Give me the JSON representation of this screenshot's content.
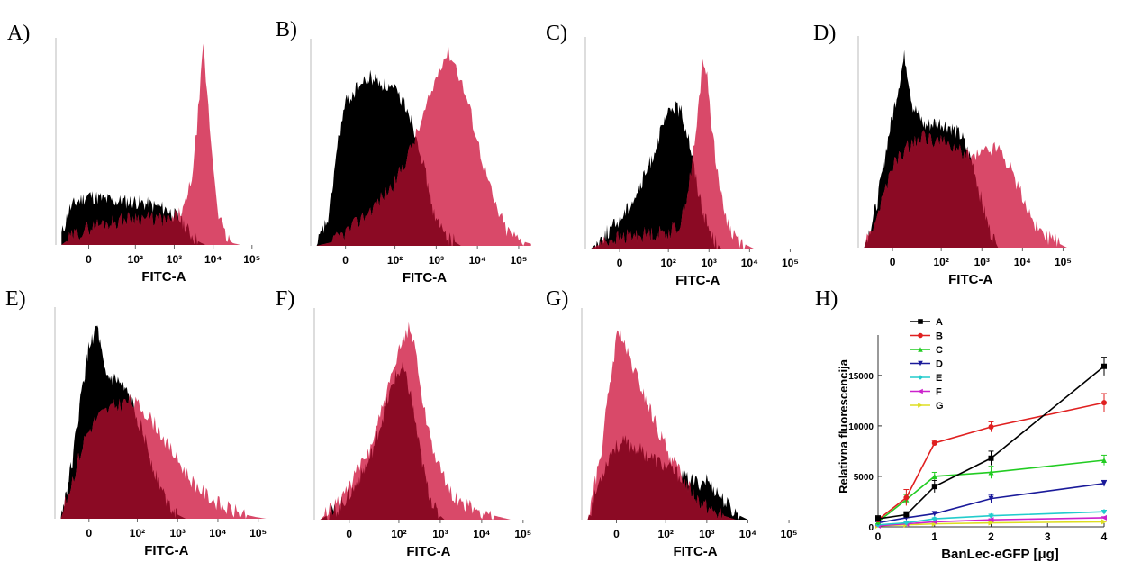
{
  "colors": {
    "control": "#000000",
    "sample": "#d63a5c",
    "overlap": "#8b0a24"
  },
  "chart_data": [
    {
      "panel": "A)",
      "type": "area",
      "xlabel": "FITC-A",
      "xticks": [
        "0",
        "10²",
        "10³",
        "10⁴",
        "10⁵"
      ],
      "control": [
        [
          -0.9,
          0.05
        ],
        [
          -0.7,
          0.18
        ],
        [
          -0.5,
          0.22
        ],
        [
          -0.2,
          0.25
        ],
        [
          0.2,
          0.23
        ],
        [
          0.6,
          0.22
        ],
        [
          1.0,
          0.22
        ],
        [
          1.4,
          0.2
        ],
        [
          1.8,
          0.18
        ],
        [
          2.0,
          0.15
        ],
        [
          2.2,
          0.12
        ],
        [
          2.4,
          0.06
        ],
        [
          2.6,
          0.02
        ],
        [
          2.8,
          0.0
        ]
      ],
      "sample": [
        [
          -0.9,
          0.0
        ],
        [
          -0.5,
          0.06
        ],
        [
          0.0,
          0.1
        ],
        [
          0.5,
          0.12
        ],
        [
          1.0,
          0.14
        ],
        [
          1.5,
          0.13
        ],
        [
          1.9,
          0.12
        ],
        [
          2.1,
          0.15
        ],
        [
          2.3,
          0.2
        ],
        [
          2.5,
          0.4
        ],
        [
          2.65,
          0.75
        ],
        [
          2.75,
          1.0
        ],
        [
          2.85,
          0.75
        ],
        [
          3.0,
          0.4
        ],
        [
          3.15,
          0.15
        ],
        [
          3.3,
          0.05
        ],
        [
          3.5,
          0.01
        ],
        [
          3.7,
          0.0
        ]
      ]
    },
    {
      "panel": "B)",
      "type": "area",
      "xlabel": "FITC-A",
      "xticks": [
        "0",
        "10²",
        "10³",
        "10⁴",
        "10⁵"
      ],
      "control": [
        [
          -0.9,
          0.0
        ],
        [
          -0.6,
          0.15
        ],
        [
          -0.4,
          0.5
        ],
        [
          -0.2,
          0.72
        ],
        [
          0.1,
          0.8
        ],
        [
          0.4,
          0.85
        ],
        [
          0.7,
          0.82
        ],
        [
          1.0,
          0.78
        ],
        [
          1.3,
          0.7
        ],
        [
          1.6,
          0.5
        ],
        [
          1.8,
          0.3
        ],
        [
          2.0,
          0.12
        ],
        [
          2.3,
          0.04
        ],
        [
          2.6,
          0.0
        ]
      ],
      "sample": [
        [
          -0.9,
          0.0
        ],
        [
          -0.5,
          0.02
        ],
        [
          0.0,
          0.1
        ],
        [
          0.5,
          0.2
        ],
        [
          1.0,
          0.32
        ],
        [
          1.3,
          0.45
        ],
        [
          1.6,
          0.6
        ],
        [
          1.9,
          0.78
        ],
        [
          2.1,
          0.92
        ],
        [
          2.3,
          0.98
        ],
        [
          2.5,
          0.9
        ],
        [
          2.8,
          0.7
        ],
        [
          3.1,
          0.45
        ],
        [
          3.4,
          0.22
        ],
        [
          3.7,
          0.08
        ],
        [
          4.0,
          0.03
        ],
        [
          4.3,
          0.01
        ]
      ]
    },
    {
      "panel": "C)",
      "type": "area",
      "xlabel": "FITC-A",
      "xticks": [
        "0",
        "10²",
        "10³",
        "10⁴",
        "10⁵"
      ],
      "control": [
        [
          -0.9,
          0.0
        ],
        [
          -0.6,
          0.06
        ],
        [
          -0.3,
          0.12
        ],
        [
          0.0,
          0.2
        ],
        [
          0.3,
          0.3
        ],
        [
          0.6,
          0.45
        ],
        [
          0.9,
          0.62
        ],
        [
          1.1,
          0.7
        ],
        [
          1.3,
          0.68
        ],
        [
          1.5,
          0.55
        ],
        [
          1.7,
          0.32
        ],
        [
          1.9,
          0.15
        ],
        [
          2.1,
          0.05
        ],
        [
          2.3,
          0.0
        ]
      ],
      "sample": [
        [
          -0.9,
          0.0
        ],
        [
          -0.5,
          0.04
        ],
        [
          0.0,
          0.06
        ],
        [
          0.5,
          0.07
        ],
        [
          1.0,
          0.08
        ],
        [
          1.3,
          0.12
        ],
        [
          1.5,
          0.3
        ],
        [
          1.7,
          0.6
        ],
        [
          1.85,
          0.95
        ],
        [
          1.95,
          0.85
        ],
        [
          2.1,
          0.55
        ],
        [
          2.3,
          0.25
        ],
        [
          2.5,
          0.1
        ],
        [
          2.8,
          0.03
        ],
        [
          3.1,
          0.0
        ]
      ]
    },
    {
      "panel": "D)",
      "type": "area",
      "xlabel": "FITC-A",
      "xticks": [
        "0",
        "10²",
        "10³",
        "10⁴",
        "10⁵"
      ],
      "control": [
        [
          -0.9,
          0.0
        ],
        [
          -0.6,
          0.2
        ],
        [
          -0.3,
          0.55
        ],
        [
          -0.1,
          0.75
        ],
        [
          0.1,
          0.95
        ],
        [
          0.3,
          0.7
        ],
        [
          0.6,
          0.6
        ],
        [
          0.9,
          0.62
        ],
        [
          1.2,
          0.6
        ],
        [
          1.5,
          0.55
        ],
        [
          1.8,
          0.4
        ],
        [
          2.0,
          0.22
        ],
        [
          2.2,
          0.08
        ],
        [
          2.4,
          0.0
        ]
      ],
      "sample": [
        [
          -0.9,
          0.0
        ],
        [
          -0.5,
          0.2
        ],
        [
          -0.2,
          0.4
        ],
        [
          0.2,
          0.5
        ],
        [
          0.6,
          0.55
        ],
        [
          1.0,
          0.52
        ],
        [
          1.4,
          0.48
        ],
        [
          1.8,
          0.45
        ],
        [
          2.1,
          0.48
        ],
        [
          2.4,
          0.5
        ],
        [
          2.7,
          0.4
        ],
        [
          3.0,
          0.25
        ],
        [
          3.3,
          0.12
        ],
        [
          3.6,
          0.05
        ],
        [
          3.9,
          0.02
        ],
        [
          4.1,
          0.0
        ]
      ]
    },
    {
      "panel": "E)",
      "type": "area",
      "xlabel": "FITC-A",
      "xticks": [
        "0",
        "10²",
        "10³",
        "10⁴",
        "10⁵"
      ],
      "control": [
        [
          -0.9,
          0.0
        ],
        [
          -0.6,
          0.3
        ],
        [
          -0.4,
          0.6
        ],
        [
          -0.2,
          0.85
        ],
        [
          0.0,
          0.95
        ],
        [
          0.2,
          0.7
        ],
        [
          0.5,
          0.68
        ],
        [
          0.8,
          0.6
        ],
        [
          1.1,
          0.45
        ],
        [
          1.4,
          0.25
        ],
        [
          1.7,
          0.1
        ],
        [
          2.0,
          0.02
        ],
        [
          2.2,
          0.0
        ]
      ],
      "sample": [
        [
          -0.9,
          0.0
        ],
        [
          -0.6,
          0.2
        ],
        [
          -0.3,
          0.4
        ],
        [
          0.0,
          0.5
        ],
        [
          0.4,
          0.55
        ],
        [
          0.8,
          0.58
        ],
        [
          1.1,
          0.55
        ],
        [
          1.5,
          0.45
        ],
        [
          1.9,
          0.32
        ],
        [
          2.3,
          0.2
        ],
        [
          2.7,
          0.12
        ],
        [
          3.1,
          0.06
        ],
        [
          3.5,
          0.03
        ],
        [
          3.9,
          0.01
        ],
        [
          4.2,
          0.0
        ]
      ]
    },
    {
      "panel": "F)",
      "type": "area",
      "xlabel": "FITC-A",
      "xticks": [
        "0",
        "10²",
        "10³",
        "10⁴",
        "10⁵"
      ],
      "control": [
        [
          -0.9,
          0.0
        ],
        [
          -0.5,
          0.05
        ],
        [
          -0.1,
          0.15
        ],
        [
          0.3,
          0.3
        ],
        [
          0.6,
          0.5
        ],
        [
          0.9,
          0.7
        ],
        [
          1.1,
          0.75
        ],
        [
          1.3,
          0.6
        ],
        [
          1.5,
          0.35
        ],
        [
          1.7,
          0.15
        ],
        [
          1.9,
          0.04
        ],
        [
          2.1,
          0.0
        ]
      ],
      "sample": [
        [
          -0.9,
          0.0
        ],
        [
          -0.5,
          0.08
        ],
        [
          -0.1,
          0.2
        ],
        [
          0.3,
          0.35
        ],
        [
          0.6,
          0.55
        ],
        [
          0.9,
          0.75
        ],
        [
          1.1,
          0.9
        ],
        [
          1.25,
          0.95
        ],
        [
          1.4,
          0.85
        ],
        [
          1.6,
          0.55
        ],
        [
          1.9,
          0.3
        ],
        [
          2.2,
          0.15
        ],
        [
          2.5,
          0.08
        ],
        [
          2.9,
          0.04
        ],
        [
          3.3,
          0.02
        ],
        [
          3.7,
          0.0
        ]
      ]
    },
    {
      "panel": "G)",
      "type": "area",
      "xlabel": "FITC-A",
      "xticks": [
        "0",
        "10²",
        "10³",
        "10⁴",
        "10⁵"
      ],
      "control": [
        [
          -0.9,
          0.0
        ],
        [
          -0.6,
          0.2
        ],
        [
          -0.3,
          0.35
        ],
        [
          0.0,
          0.38
        ],
        [
          0.3,
          0.35
        ],
        [
          0.7,
          0.3
        ],
        [
          1.1,
          0.25
        ],
        [
          1.5,
          0.2
        ],
        [
          1.8,
          0.18
        ],
        [
          2.0,
          0.2
        ],
        [
          2.2,
          0.15
        ],
        [
          2.4,
          0.1
        ],
        [
          2.6,
          0.05
        ],
        [
          2.8,
          0.02
        ],
        [
          3.0,
          0.0
        ]
      ],
      "sample": [
        [
          -0.9,
          0.0
        ],
        [
          -0.6,
          0.3
        ],
        [
          -0.3,
          0.75
        ],
        [
          -0.15,
          0.95
        ],
        [
          0.0,
          0.85
        ],
        [
          0.3,
          0.7
        ],
        [
          0.6,
          0.55
        ],
        [
          0.9,
          0.4
        ],
        [
          1.2,
          0.28
        ],
        [
          1.5,
          0.18
        ],
        [
          1.8,
          0.1
        ],
        [
          2.1,
          0.05
        ],
        [
          2.4,
          0.02
        ],
        [
          2.7,
          0.0
        ]
      ]
    },
    {
      "panel": "H)",
      "type": "line",
      "xlabel": "BanLec-eGFP [μg]",
      "ylabel": "Relativna fluorescencija",
      "xlim": [
        0,
        4
      ],
      "ylim": [
        0,
        19000
      ],
      "xticks": [
        "0",
        "1",
        "2",
        "3",
        "4"
      ],
      "yticks": [
        "0",
        "5000",
        "10000",
        "15000"
      ],
      "x": [
        0,
        0.5,
        1,
        2,
        4
      ],
      "series": [
        {
          "name": "A",
          "color": "#000000",
          "marker": "square",
          "values": [
            800,
            1200,
            4000,
            6800,
            15900
          ],
          "errors": [
            300,
            300,
            600,
            700,
            900
          ]
        },
        {
          "name": "B",
          "color": "#e02020",
          "marker": "circle",
          "values": [
            700,
            2900,
            8300,
            9900,
            12300
          ],
          "errors": [
            200,
            800,
            200,
            500,
            900
          ]
        },
        {
          "name": "C",
          "color": "#22cc22",
          "marker": "triangle-up",
          "values": [
            500,
            2700,
            5000,
            5400,
            6600
          ],
          "errors": [
            200,
            500,
            400,
            600,
            500
          ]
        },
        {
          "name": "D",
          "color": "#1a1a9a",
          "marker": "triangle-down",
          "values": [
            400,
            900,
            1300,
            2800,
            4300
          ],
          "errors": [
            100,
            200,
            200,
            400,
            300
          ]
        },
        {
          "name": "E",
          "color": "#22cccc",
          "marker": "diamond",
          "values": [
            200,
            400,
            800,
            1100,
            1500
          ],
          "errors": [
            100,
            100,
            100,
            150,
            150
          ]
        },
        {
          "name": "F",
          "color": "#cc22cc",
          "marker": "triangle-left",
          "values": [
            100,
            300,
            500,
            700,
            900
          ],
          "errors": [
            50,
            80,
            80,
            100,
            100
          ]
        },
        {
          "name": "G",
          "color": "#dddd22",
          "marker": "triangle-right",
          "values": [
            100,
            200,
            300,
            400,
            500
          ],
          "errors": [
            50,
            50,
            50,
            60,
            60
          ]
        }
      ]
    }
  ]
}
